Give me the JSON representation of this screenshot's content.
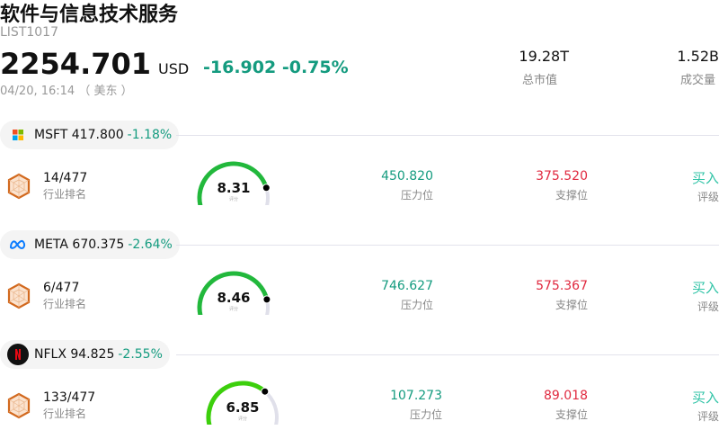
{
  "header": {
    "title": "软件与信息技术服务",
    "code": "LIST1017",
    "price": "2254.701",
    "currency": "USD",
    "change": "-16.902",
    "change_pct": "-0.75%",
    "time": "04/20, 16:14 （ 美东 ）"
  },
  "stats": [
    {
      "value": "19.28T",
      "label": "总市值"
    },
    {
      "value": "1.52B",
      "label": "成交量"
    }
  ],
  "colors": {
    "down": "#149b7f",
    "support": "#e0293f",
    "buy": "#2fc3a6"
  },
  "stocks": [
    {
      "ticker": "MSFT 417.800",
      "change": "-1.18%",
      "icon": "microsoft-logo",
      "rank": "14/477",
      "rank_label": "行业排名",
      "score": "8.31",
      "score_value": 8.31,
      "score_label": "评分",
      "resistance": "450.820",
      "resistance_label": "压力位",
      "support": "375.520",
      "support_label": "支撑位",
      "rating": "买入",
      "rating_label": "评级",
      "gauge_color": "#22b83c"
    },
    {
      "ticker": "META 670.375",
      "change": "-2.64%",
      "icon": "meta-logo",
      "rank": "6/477",
      "rank_label": "行业排名",
      "score": "8.46",
      "score_value": 8.46,
      "score_label": "评分",
      "resistance": "746.627",
      "resistance_label": "压力位",
      "support": "575.367",
      "support_label": "支撑位",
      "rating": "买入",
      "rating_label": "评级",
      "gauge_color": "#22b83c"
    },
    {
      "ticker": "NFLX 94.825",
      "change": "-2.55%",
      "icon": "netflix-logo",
      "rank": "133/477",
      "rank_label": "行业排名",
      "score": "6.85",
      "score_value": 6.85,
      "score_label": "评分",
      "resistance": "107.273",
      "resistance_label": "压力位",
      "support": "89.018",
      "support_label": "支撑位",
      "rating": "买入",
      "rating_label": "评级",
      "gauge_color": "#3ccf0c"
    }
  ]
}
